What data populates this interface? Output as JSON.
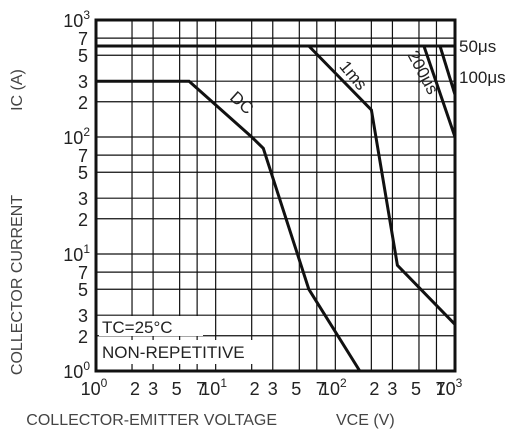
{
  "chart_data": {
    "type": "line",
    "xlabel": "COLLECTOR-EMITTER VOLTAGE",
    "xlabel_symbol": "VCE (V)",
    "ylabel": "COLLECTOR CURRENT",
    "ylabel_symbol": "IC (A)",
    "x_scale": "log",
    "y_scale": "log",
    "xlim": [
      1,
      1000
    ],
    "ylim": [
      1,
      1000
    ],
    "grid": true,
    "x_major_ticks": [
      {
        "value": 1,
        "base": "10",
        "exp": "0"
      },
      {
        "value": 10,
        "base": "10",
        "exp": "1"
      },
      {
        "value": 100,
        "base": "10",
        "exp": "2"
      },
      {
        "value": 1000,
        "base": "10",
        "exp": "3"
      }
    ],
    "x_minor_ticks": [
      {
        "value": 2,
        "label": "2"
      },
      {
        "value": 3,
        "label": "3"
      },
      {
        "value": 5,
        "label": "5"
      },
      {
        "value": 7,
        "label": "7"
      },
      {
        "value": 20,
        "label": "2"
      },
      {
        "value": 30,
        "label": "3"
      },
      {
        "value": 50,
        "label": "5"
      },
      {
        "value": 70,
        "label": "7"
      },
      {
        "value": 200,
        "label": "2"
      },
      {
        "value": 300,
        "label": "3"
      },
      {
        "value": 500,
        "label": "5"
      },
      {
        "value": 700,
        "label": "7"
      }
    ],
    "y_major_ticks": [
      {
        "value": 1,
        "base": "10",
        "exp": "0"
      },
      {
        "value": 10,
        "base": "10",
        "exp": "1"
      },
      {
        "value": 100,
        "base": "10",
        "exp": "2"
      },
      {
        "value": 1000,
        "base": "10",
        "exp": "3"
      }
    ],
    "y_minor_ticks": [
      {
        "value": 2,
        "label": "2"
      },
      {
        "value": 3,
        "label": "3"
      },
      {
        "value": 5,
        "label": "5"
      },
      {
        "value": 7,
        "label": "7"
      },
      {
        "value": 20,
        "label": "2"
      },
      {
        "value": 30,
        "label": "3"
      },
      {
        "value": 50,
        "label": "5"
      },
      {
        "value": 70,
        "label": "7"
      },
      {
        "value": 200,
        "label": "2"
      },
      {
        "value": 300,
        "label": "3"
      },
      {
        "value": 500,
        "label": "5"
      },
      {
        "value": 700,
        "label": "7"
      }
    ],
    "series": [
      {
        "name": "DC",
        "points": [
          [
            1,
            300
          ],
          [
            6,
            300
          ],
          [
            20,
            100
          ],
          [
            25,
            80
          ],
          [
            60,
            5
          ],
          [
            160,
            1
          ]
        ]
      },
      {
        "name": "1ms",
        "points": [
          [
            60,
            600
          ],
          [
            200,
            170
          ],
          [
            330,
            8
          ],
          [
            1000,
            2.5
          ]
        ]
      },
      {
        "name": "200μs",
        "points": [
          [
            550,
            600
          ],
          [
            1000,
            100
          ]
        ]
      },
      {
        "name": "100μs",
        "points": [
          [
            750,
            600
          ],
          [
            1000,
            230
          ]
        ]
      },
      {
        "name": "50μs",
        "points": [
          [
            1,
            600
          ],
          [
            1000,
            600
          ]
        ]
      }
    ],
    "annotations": [
      {
        "text": "TC=25°C"
      },
      {
        "text": "NON-REPETITIVE"
      }
    ]
  }
}
